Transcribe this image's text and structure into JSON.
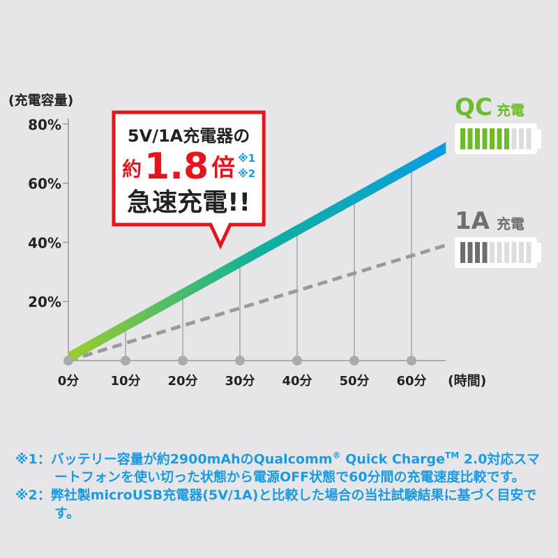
{
  "chart_data": {
    "type": "line",
    "ylabel": "(充電容量)",
    "xlabel": "(時間)",
    "x_ticks": [
      "0分",
      "10分",
      "20分",
      "30分",
      "40分",
      "50分",
      "60分"
    ],
    "y_ticks": [
      "20%",
      "40%",
      "60%",
      "80%"
    ],
    "xlim": [
      0,
      66
    ],
    "ylim": [
      0,
      80
    ],
    "grid": false,
    "series": [
      {
        "name": "QC充電",
        "style": "solid-gradient",
        "colors": [
          "#9ccc2e",
          "#10b09a",
          "#0a9de3"
        ],
        "x": [
          0,
          66
        ],
        "y": [
          1,
          72
        ]
      },
      {
        "name": "1A充電",
        "style": "dashed",
        "color": "#9a9a9a",
        "x": [
          0,
          66
        ],
        "y": [
          0,
          39
        ]
      }
    ],
    "legend": {
      "qc": {
        "prefix": "QC",
        "suffix": "充電",
        "color": "#6cbb2a",
        "battery_filled": 7,
        "battery_total": 10
      },
      "one_a": {
        "prefix": "1A",
        "suffix": "充電",
        "color": "#6e6e6e",
        "battery_filled": 4,
        "battery_total": 10
      }
    },
    "callout": {
      "line1": "5V/1A充電器の",
      "prefix": "約",
      "value": "1.8",
      "suffix": "倍",
      "note1": "※1",
      "note2": "※2",
      "line3": "急速充電!!",
      "border_color": "#e5151d"
    }
  },
  "footnotes": {
    "note1_mark": "※1：",
    "note1_text": "バッテリー容量が約2900mAhのQualcomm",
    "note1_reg": "®",
    "note1_text2": " Quick Charge",
    "note1_tm": "TM",
    "note1_text3": " 2.0対応スマートフォンを使い切った状態から電源OFF状態で60分間の充電速度比較です。",
    "note2_mark": "※2：",
    "note2_text": "弊社製microUSB充電器(5V/1A)と比較した場合の当社試験結果に基づく目安です。"
  }
}
